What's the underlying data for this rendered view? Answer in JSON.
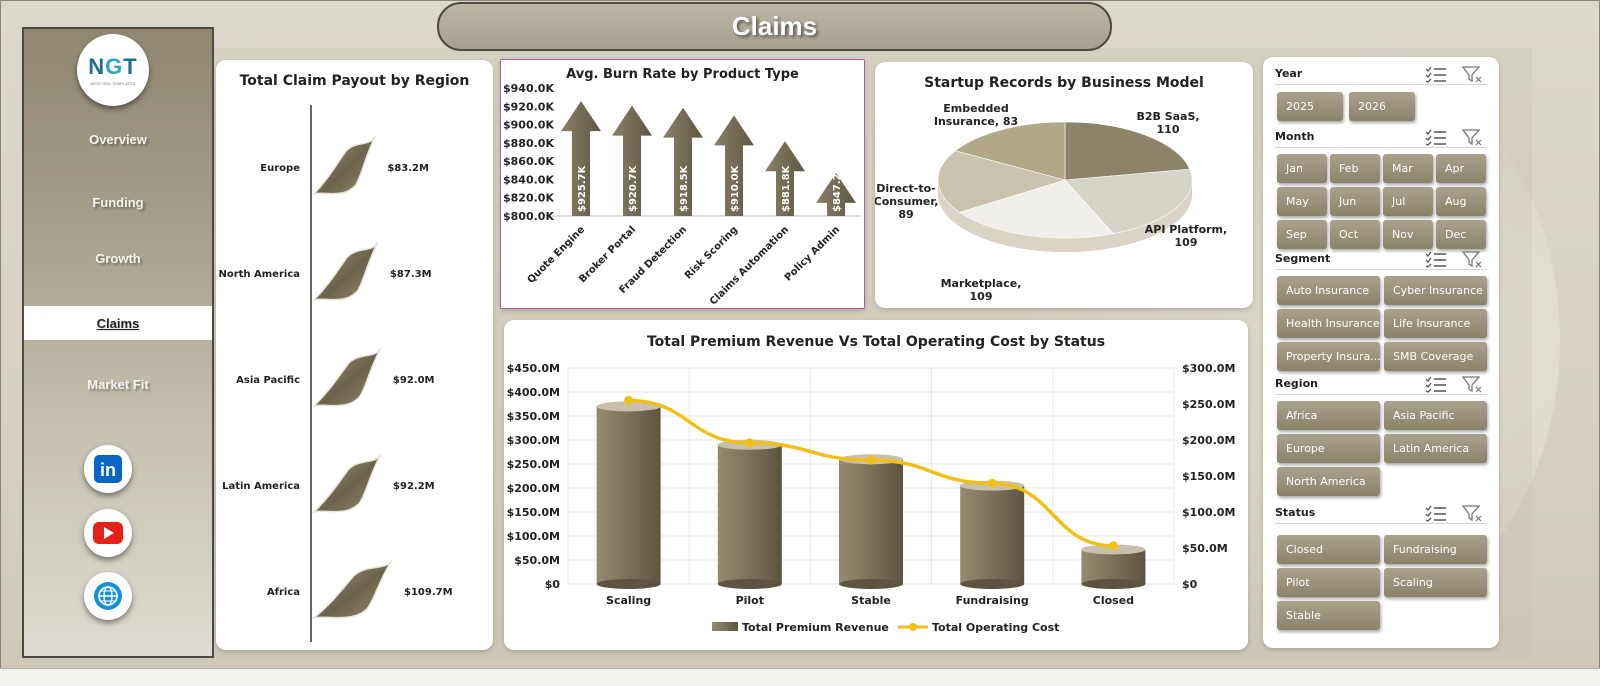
{
  "header": {
    "title": "Claims"
  },
  "logo": {
    "text": "NGT",
    "subtitle": "NEXT GEN TEMPLATES"
  },
  "sidebar": {
    "items": [
      {
        "label": "Overview",
        "active": false
      },
      {
        "label": "Funding",
        "active": false
      },
      {
        "label": "Growth",
        "active": false
      },
      {
        "label": "Claims",
        "active": true
      },
      {
        "label": "Market Fit",
        "active": false
      }
    ],
    "social": [
      {
        "icon": "linkedin-icon",
        "label": "in"
      },
      {
        "icon": "youtube-icon"
      },
      {
        "icon": "globe-icon"
      }
    ]
  },
  "colors": {
    "accent": "#8a8269",
    "bar_dark": "#6f6650",
    "line": "#f2c014",
    "active_bg": "#ffffff"
  },
  "chart_data": [
    {
      "id": "claim-payout",
      "type": "bar",
      "title": "Total Claim Payout by Region",
      "categories": [
        "Europe",
        "North America",
        "Asia Pacific",
        "Latin America",
        "Africa"
      ],
      "values": [
        83.2,
        87.3,
        92.0,
        92.2,
        109.7
      ],
      "value_labels": [
        "$83.2M",
        "$87.3M",
        "$92.0M",
        "$92.2M",
        "$109.7M"
      ],
      "unit": "$M",
      "orientation": "horizontal"
    },
    {
      "id": "burn-rate",
      "type": "bar",
      "title": "Avg. Burn Rate by Product Type",
      "categories": [
        "Quote Engine",
        "Broker Portal",
        "Fraud Detection",
        "Risk Scoring",
        "Claims Automation",
        "Policy Admin"
      ],
      "values": [
        925.7,
        920.7,
        918.5,
        910.0,
        881.8,
        847.2
      ],
      "value_labels": [
        "$925.7K",
        "$920.7K",
        "$918.5K",
        "$910.0K",
        "$881.8K",
        "$847.2K"
      ],
      "ylim": [
        800,
        940
      ],
      "yticks": [
        "$940.0K",
        "$920.0K",
        "$900.0K",
        "$880.0K",
        "$860.0K",
        "$840.0K",
        "$820.0K",
        "$800.0K"
      ]
    },
    {
      "id": "startup-records",
      "type": "pie",
      "title": "Startup Records by Business Model",
      "slices": [
        {
          "label": "B2B SaaS,",
          "value": 110,
          "color": "#8c8468"
        },
        {
          "label": "API Platform,",
          "value": 109,
          "color": "#d6d3c9"
        },
        {
          "label": "Marketplace,",
          "value": 109,
          "color": "#f1efe9"
        },
        {
          "label": "Direct-to-Consumer,",
          "value": 89,
          "color": "#cac3ad"
        },
        {
          "label": "Embedded Insurance,",
          "value": 83,
          "color": "#b2a888"
        }
      ]
    },
    {
      "id": "premium-vs-cost",
      "type": "bar",
      "title": "Total Premium Revenue Vs Total Operating Cost by Status",
      "categories": [
        "Scaling",
        "Pilot",
        "Stable",
        "Fundraising",
        "Closed"
      ],
      "series": [
        {
          "name": "Total Premium Revenue",
          "type": "bar",
          "axis": "left",
          "values": [
            370,
            290,
            260,
            205,
            72
          ]
        },
        {
          "name": "Total Operating Cost",
          "type": "line",
          "axis": "right",
          "values": [
            255,
            196,
            172,
            140,
            53
          ]
        }
      ],
      "ylim_left": [
        0,
        450
      ],
      "ylim_right": [
        0,
        300
      ],
      "yticks_left": [
        "$450.0M",
        "$400.0M",
        "$350.0M",
        "$300.0M",
        "$250.0M",
        "$200.0M",
        "$150.0M",
        "$100.0M",
        "$50.0M",
        "$0"
      ],
      "yticks_right": [
        "$300.0M",
        "$250.0M",
        "$200.0M",
        "$150.0M",
        "$100.0M",
        "$50.0M",
        "$0"
      ],
      "legend": "bottom"
    }
  ],
  "filters": {
    "groups": [
      {
        "name": "Year",
        "options": [
          "2025",
          "2026"
        ]
      },
      {
        "name": "Month",
        "options": [
          "Jan",
          "Feb",
          "Mar",
          "Apr",
          "May",
          "Jun",
          "Jul",
          "Aug",
          "Sep",
          "Oct",
          "Nov",
          "Dec"
        ]
      },
      {
        "name": "Segment",
        "options": [
          "Auto Insurance",
          "Cyber Insurance",
          "Health Insurance",
          "Life Insurance",
          "Property Insura...",
          "SMB Coverage"
        ]
      },
      {
        "name": "Region",
        "options": [
          "Africa",
          "Asia Pacific",
          "Europe",
          "Latin America",
          "North America"
        ]
      },
      {
        "name": "Status",
        "options": [
          "Closed",
          "Fundraising",
          "Pilot",
          "Scaling",
          "Stable"
        ]
      }
    ]
  }
}
